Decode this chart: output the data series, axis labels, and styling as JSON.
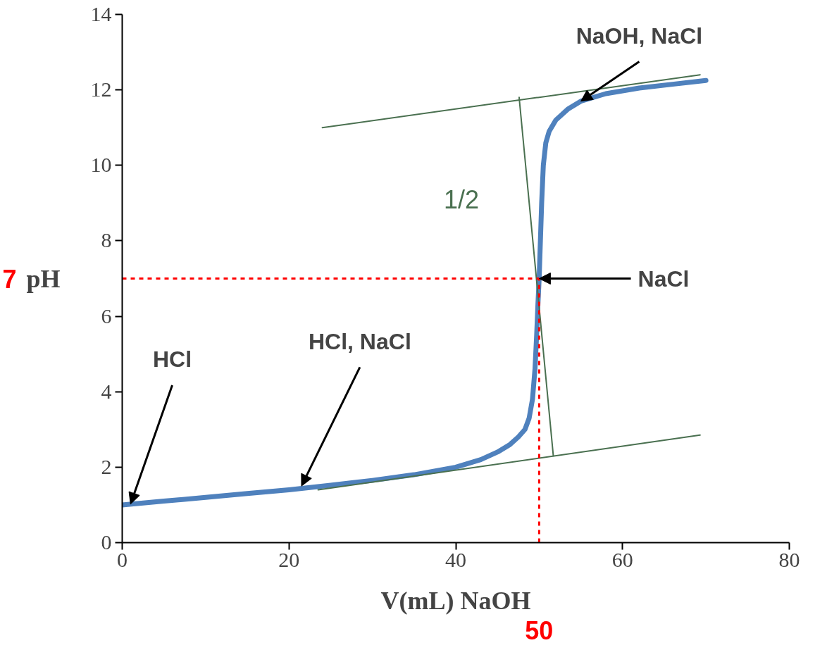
{
  "chart_data": {
    "type": "line",
    "xlabel": "V(mL) NaOH",
    "ylabel": "pH",
    "xlim": [
      0,
      80
    ],
    "ylim": [
      0,
      14
    ],
    "xticks": [
      0,
      20,
      40,
      60,
      80
    ],
    "yticks": [
      0,
      2,
      4,
      6,
      8,
      10,
      12,
      14
    ],
    "grid": false,
    "marker": "none",
    "series": [
      {
        "color": "#4f81bd",
        "x": [
          0,
          5,
          10,
          15,
          20,
          25,
          30,
          35,
          40,
          43,
          45,
          46.5,
          47.5,
          48.3,
          48.8,
          49.2,
          49.5,
          49.7,
          49.85,
          50,
          50.15,
          50.3,
          50.5,
          50.8,
          51.2,
          52,
          53.5,
          55,
          58,
          62,
          66,
          70
        ],
        "values": [
          1,
          1.1,
          1.2,
          1.3,
          1.4,
          1.52,
          1.65,
          1.8,
          2.0,
          2.2,
          2.4,
          2.6,
          2.8,
          3.0,
          3.3,
          3.8,
          4.6,
          5.5,
          6.3,
          7,
          8,
          9,
          10,
          10.6,
          10.9,
          11.2,
          11.5,
          11.7,
          11.9,
          12.05,
          12.15,
          12.25
        ]
      },
      {
        "type": "line",
        "color": "#4a7050",
        "x": [
          24,
          69.3
        ],
        "values": [
          11.0,
          12.4
        ]
      },
      {
        "type": "line",
        "color": "#4a7050",
        "x": [
          23.5,
          69.3
        ],
        "values": [
          1.4,
          2.85
        ]
      },
      {
        "type": "line",
        "color": "#4a7050",
        "x": [
          47.6,
          51.7
        ],
        "values": [
          11.8,
          2.3
        ]
      }
    ],
    "ref_lines": [
      {
        "axis": "y",
        "value": 7,
        "label": "7",
        "color": "#ff0000",
        "line_style": "dashed"
      },
      {
        "axis": "x",
        "value": 50,
        "label": "50",
        "color": "#ff0000",
        "line_style": "dashed"
      }
    ],
    "annotations": [
      {
        "text": "HCl",
        "x": 1,
        "y": 1.02
      },
      {
        "text": "HCl, NaCl",
        "x": 21.5,
        "y": 1.5
      },
      {
        "text": "NaCl",
        "x": 50,
        "y": 7
      },
      {
        "text": "NaOH, NaCl",
        "x": 55,
        "y": 11.7
      },
      "1/2"
    ]
  }
}
